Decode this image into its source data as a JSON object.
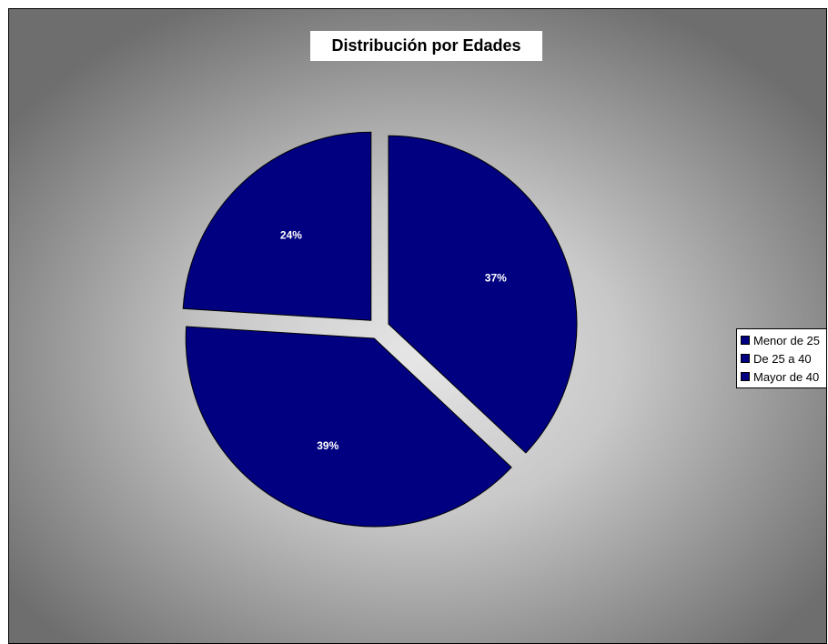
{
  "chart_data": {
    "type": "pie",
    "title": "Distribución por Edades",
    "exploded": true,
    "legend_position": "right",
    "categories": [
      "Menor de 25",
      "De 25 a 40",
      "Mayor de 40"
    ],
    "values": [
      37,
      39,
      24
    ],
    "data_labels": [
      "37%",
      "39%",
      "24%"
    ],
    "slice_color": "#000080",
    "border_color": "#000000",
    "label_color": "#ffffff"
  },
  "legend": {
    "items": [
      {
        "label": "Menor de 25",
        "color": "#000080"
      },
      {
        "label": "De 25 a 40",
        "color": "#000080"
      },
      {
        "label": "Mayor de 40",
        "color": "#000080"
      }
    ]
  }
}
